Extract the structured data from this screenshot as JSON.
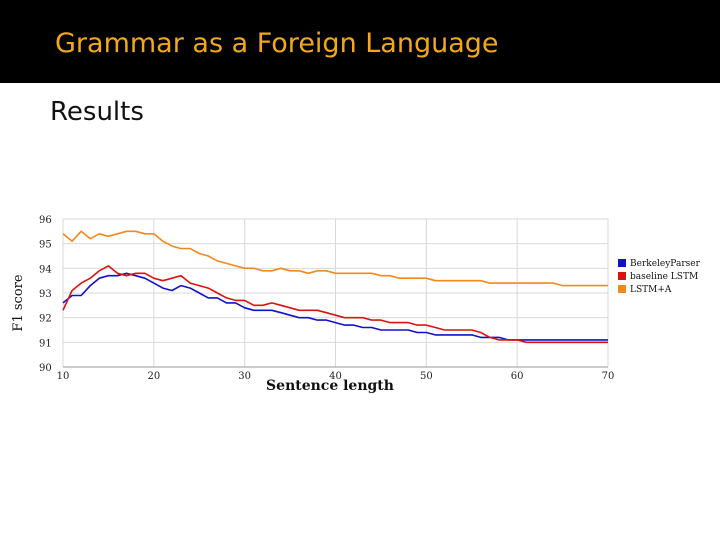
{
  "slide": {
    "title": "Grammar as a Foreign Language",
    "subtitle": "Results"
  },
  "chart_data": {
    "type": "line",
    "xlabel": "Sentence length",
    "ylabel": "F1 score",
    "xlim": [
      10,
      70
    ],
    "ylim": [
      90,
      96
    ],
    "xticks": [
      "10",
      "20",
      "30",
      "40",
      "50",
      "60",
      "70"
    ],
    "yticks": [
      "90",
      "91",
      "92",
      "93",
      "94",
      "95",
      "96"
    ],
    "grid": true,
    "legend": "right",
    "series": [
      {
        "name": "BerkeleyParser",
        "color": "#1111cc",
        "x": [
          10,
          11,
          12,
          13,
          14,
          15,
          16,
          17,
          18,
          19,
          20,
          21,
          22,
          23,
          24,
          25,
          26,
          27,
          28,
          29,
          30,
          31,
          32,
          33,
          34,
          35,
          36,
          37,
          38,
          39,
          40,
          41,
          42,
          43,
          44,
          45,
          46,
          47,
          48,
          49,
          50,
          51,
          52,
          53,
          54,
          55,
          56,
          57,
          58,
          59,
          60,
          61,
          62,
          63,
          64,
          65,
          66,
          67,
          68,
          69,
          70
        ],
        "values": [
          92.6,
          92.9,
          92.9,
          93.3,
          93.6,
          93.7,
          93.7,
          93.8,
          93.7,
          93.6,
          93.4,
          93.2,
          93.1,
          93.3,
          93.2,
          93.0,
          92.8,
          92.8,
          92.6,
          92.6,
          92.4,
          92.3,
          92.3,
          92.3,
          92.2,
          92.1,
          92.0,
          92.0,
          91.9,
          91.9,
          91.8,
          91.7,
          91.7,
          91.6,
          91.6,
          91.5,
          91.5,
          91.5,
          91.5,
          91.4,
          91.4,
          91.3,
          91.3,
          91.3,
          91.3,
          91.3,
          91.2,
          91.2,
          91.2,
          91.1,
          91.1,
          91.1,
          91.1,
          91.1,
          91.1,
          91.1,
          91.1,
          91.1,
          91.1,
          91.1,
          91.1
        ]
      },
      {
        "name": "baseline LSTM",
        "color": "#dd1111",
        "x": [
          10,
          11,
          12,
          13,
          14,
          15,
          16,
          17,
          18,
          19,
          20,
          21,
          22,
          23,
          24,
          25,
          26,
          27,
          28,
          29,
          30,
          31,
          32,
          33,
          34,
          35,
          36,
          37,
          38,
          39,
          40,
          41,
          42,
          43,
          44,
          45,
          46,
          47,
          48,
          49,
          50,
          51,
          52,
          53,
          54,
          55,
          56,
          57,
          58,
          59,
          60,
          61,
          62,
          63,
          64,
          65,
          66,
          67,
          68,
          69,
          70
        ],
        "values": [
          92.3,
          93.1,
          93.4,
          93.6,
          93.9,
          94.1,
          93.8,
          93.7,
          93.8,
          93.8,
          93.6,
          93.5,
          93.6,
          93.7,
          93.4,
          93.3,
          93.2,
          93.0,
          92.8,
          92.7,
          92.7,
          92.5,
          92.5,
          92.6,
          92.5,
          92.4,
          92.3,
          92.3,
          92.3,
          92.2,
          92.1,
          92.0,
          92.0,
          92.0,
          91.9,
          91.9,
          91.8,
          91.8,
          91.8,
          91.7,
          91.7,
          91.6,
          91.5,
          91.5,
          91.5,
          91.5,
          91.4,
          91.2,
          91.1,
          91.1,
          91.1,
          91.0,
          91.0,
          91.0,
          91.0,
          91.0,
          91.0,
          91.0,
          91.0,
          91.0,
          91.0
        ]
      },
      {
        "name": "LSTM+A",
        "color": "#f08a1c",
        "x": [
          10,
          11,
          12,
          13,
          14,
          15,
          16,
          17,
          18,
          19,
          20,
          21,
          22,
          23,
          24,
          25,
          26,
          27,
          28,
          29,
          30,
          31,
          32,
          33,
          34,
          35,
          36,
          37,
          38,
          39,
          40,
          41,
          42,
          43,
          44,
          45,
          46,
          47,
          48,
          49,
          50,
          51,
          52,
          53,
          54,
          55,
          56,
          57,
          58,
          59,
          60,
          61,
          62,
          63,
          64,
          65,
          66,
          67,
          68,
          69,
          70
        ],
        "values": [
          95.4,
          95.1,
          95.5,
          95.2,
          95.4,
          95.3,
          95.4,
          95.5,
          95.5,
          95.4,
          95.4,
          95.1,
          94.9,
          94.8,
          94.8,
          94.6,
          94.5,
          94.3,
          94.2,
          94.1,
          94.0,
          94.0,
          93.9,
          93.9,
          94.0,
          93.9,
          93.9,
          93.8,
          93.9,
          93.9,
          93.8,
          93.8,
          93.8,
          93.8,
          93.8,
          93.7,
          93.7,
          93.6,
          93.6,
          93.6,
          93.6,
          93.5,
          93.5,
          93.5,
          93.5,
          93.5,
          93.5,
          93.4,
          93.4,
          93.4,
          93.4,
          93.4,
          93.4,
          93.4,
          93.4,
          93.3,
          93.3,
          93.3,
          93.3,
          93.3,
          93.3
        ]
      }
    ]
  }
}
